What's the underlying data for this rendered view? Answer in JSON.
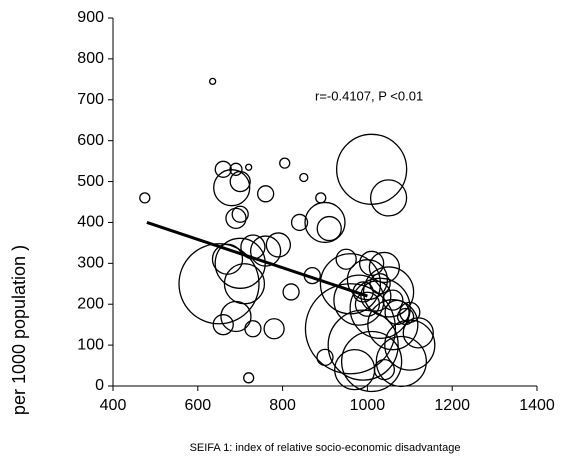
{
  "chart_data": {
    "type": "bubble",
    "xlabel": "SEIFA 1: index of relative socio-economic disadvantage",
    "ylabel": "per 1000 population )",
    "annotation": "r=-0.4107, P <0.01",
    "x": [
      475,
      635,
      660,
      690,
      720,
      680,
      700,
      760,
      805,
      850,
      890,
      690,
      700,
      840,
      900,
      910,
      1010,
      1050,
      650,
      670,
      700,
      710,
      730,
      760,
      790,
      690,
      660,
      730,
      780,
      720,
      820,
      870,
      960,
      980,
      960,
      990,
      1010,
      970,
      1050,
      1030,
      1060,
      1100,
      1080,
      1000,
      1040,
      1020,
      1000,
      1070,
      1100,
      1120,
      900,
      1040,
      1010,
      950,
      990,
      1030,
      1060,
      1090
    ],
    "values": [
      460,
      745,
      530,
      530,
      535,
      485,
      500,
      470,
      545,
      510,
      460,
      410,
      420,
      400,
      400,
      385,
      530,
      460,
      250,
      310,
      300,
      250,
      340,
      330,
      345,
      170,
      150,
      140,
      140,
      20,
      230,
      270,
      250,
      210,
      140,
      100,
      60,
      40,
      230,
      190,
      150,
      100,
      60,
      260,
      290,
      220,
      200,
      180,
      180,
      130,
      70,
      40,
      300,
      310,
      230,
      250,
      210,
      170
    ],
    "sizes": [
      5,
      3,
      8,
      6,
      3,
      18,
      10,
      8,
      5,
      4,
      5,
      10,
      8,
      8,
      20,
      12,
      35,
      18,
      40,
      15,
      25,
      20,
      12,
      15,
      12,
      15,
      10,
      8,
      10,
      5,
      8,
      8,
      30,
      25,
      45,
      35,
      30,
      20,
      25,
      30,
      25,
      25,
      25,
      20,
      15,
      15,
      12,
      12,
      10,
      15,
      8,
      10,
      12,
      10,
      10,
      10,
      10,
      8
    ],
    "color": "#000000",
    "trend": {
      "x": [
        480,
        1000
      ],
      "values": [
        400,
        220
      ]
    },
    "xlim": [
      400,
      1400
    ],
    "xticks": [
      400,
      600,
      800,
      1000,
      1200,
      1400
    ],
    "ylim": [
      0,
      900
    ],
    "yticks": [
      0,
      100,
      200,
      300,
      400,
      500,
      600,
      700,
      800,
      900
    ],
    "grid": false
  }
}
